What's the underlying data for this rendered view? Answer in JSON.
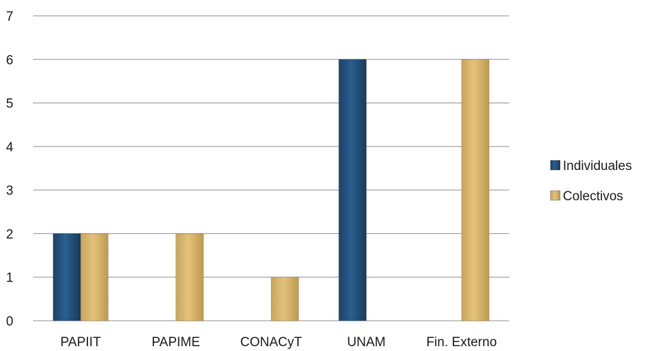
{
  "chart_data": {
    "type": "bar",
    "categories": [
      "PAPIIT",
      "PAPIME",
      "CONACyT",
      "UNAM",
      "Fin. Externo"
    ],
    "series": [
      {
        "name": "Individuales",
        "values": [
          2,
          0,
          0,
          6,
          0
        ]
      },
      {
        "name": "Colectivos",
        "values": [
          2,
          2,
          1,
          0,
          6
        ]
      }
    ],
    "ylim": [
      0,
      7
    ],
    "yticks": [
      "0",
      "1",
      "2",
      "3",
      "4",
      "5",
      "6",
      "7"
    ],
    "grid": true,
    "legend": "right",
    "colors": {
      "Individuales": "#1f4e79",
      "Colectivos": "#d6b46a",
      "gridline": "#8c8c8c"
    }
  }
}
